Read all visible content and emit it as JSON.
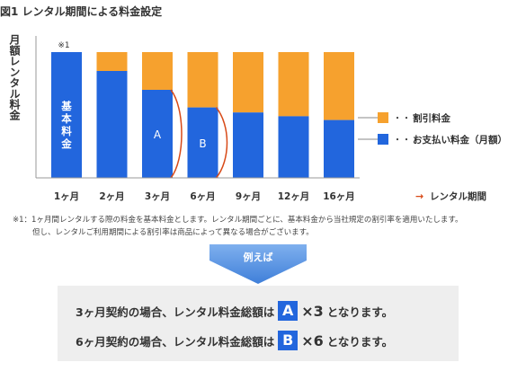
{
  "title": "図1 レンタル期間による料金設定",
  "chart_data": {
    "type": "bar",
    "stacked": true,
    "ylabel": "月額レンタル料金",
    "xlabel": "レンタル期間",
    "categories": [
      "1ヶ月",
      "2ヶ月",
      "3ヶ月",
      "6ヶ月",
      "9ヶ月",
      "12ヶ月",
      "16ヶ月"
    ],
    "series": [
      {
        "name": "お支払い料金（月額）",
        "color": "#2266dd",
        "values": [
          100,
          85,
          70,
          56,
          52,
          49,
          46
        ]
      },
      {
        "name": "割引料金",
        "color": "#f6a12e",
        "values": [
          0,
          15,
          30,
          44,
          48,
          51,
          54
        ]
      }
    ],
    "ylim": [
      0,
      100
    ],
    "legend_position": "right",
    "bar_labels": [
      "基本料金",
      "",
      "A",
      "B",
      "",
      "",
      ""
    ],
    "annotation": "※1",
    "legend_dots": "・・・"
  },
  "notes": {
    "line1": "※1：1ヶ月間レンタルする際の料金を基本料金とします。レンタル期間ごとに、基本料金から当社規定の割引率を適用いたします。",
    "line2": "但し、レンタルご利用期間による割引率は商品によって異なる場合がございます。"
  },
  "banner": {
    "label": "例えば"
  },
  "examples": [
    {
      "prefix": "3ヶ月契約の場合、レンタル料金総額は",
      "letter": "A",
      "multiplier": "×3",
      "suffix": "となります。"
    },
    {
      "prefix": "6ヶ月契約の場合、レンタル料金総額は",
      "letter": "B",
      "multiplier": "×6",
      "suffix": "となります。"
    }
  ]
}
